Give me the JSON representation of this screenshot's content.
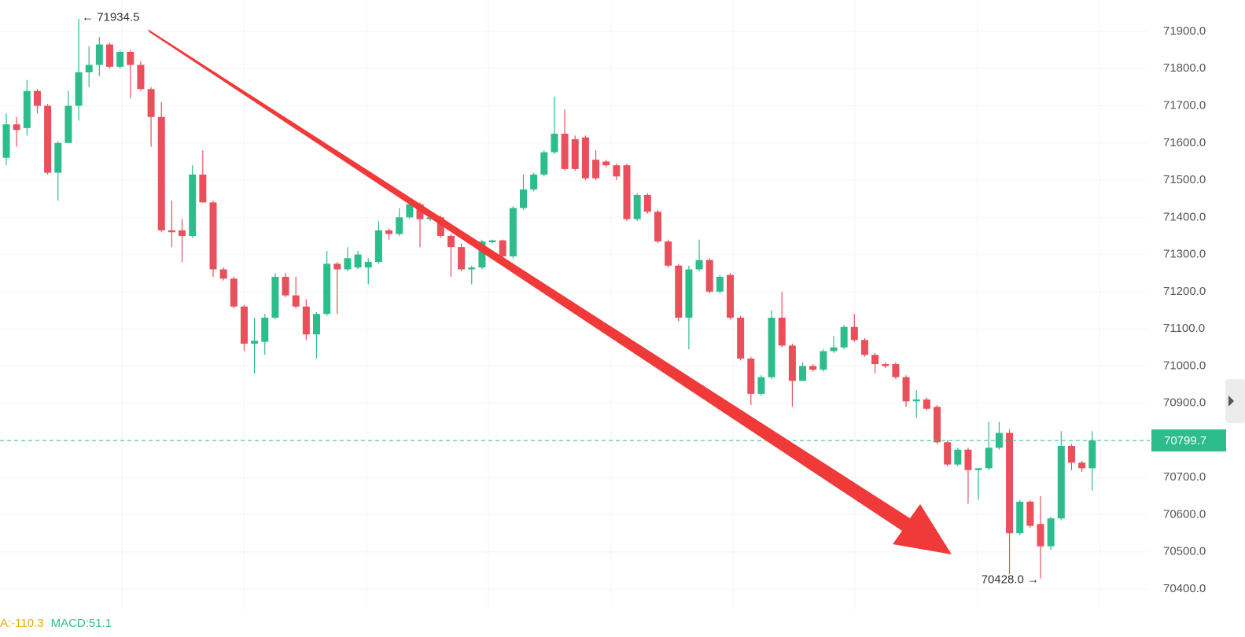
{
  "chart_data": {
    "type": "candlestick",
    "up_color": "#2dbd8c",
    "down_color": "#e9505b",
    "ylim": [
      70400,
      71900
    ],
    "yticks": [
      {
        "value": 70400,
        "label": "70400.0"
      },
      {
        "value": 70500,
        "label": "70500.0"
      },
      {
        "value": 70600,
        "label": "70600.0"
      },
      {
        "value": 70700,
        "label": "70700.0"
      },
      {
        "value": 70800,
        "label": "70800.0"
      },
      {
        "value": 70900,
        "label": "70900.0"
      },
      {
        "value": 71000,
        "label": "71000.0"
      },
      {
        "value": 71100,
        "label": "71100.0"
      },
      {
        "value": 71200,
        "label": "71200.0"
      },
      {
        "value": 71300,
        "label": "71300.0"
      },
      {
        "value": 71400,
        "label": "71400.0"
      },
      {
        "value": 71500,
        "label": "71500.0"
      },
      {
        "value": 71600,
        "label": "71600.0"
      },
      {
        "value": 71700,
        "label": "71700.0"
      },
      {
        "value": 71800,
        "label": "71800.0"
      },
      {
        "value": 71900,
        "label": "71900.0"
      }
    ],
    "open": [
      71560,
      71650,
      71640,
      71740,
      71700,
      71520,
      71600,
      71700,
      71790,
      71810,
      71865,
      71805,
      71845,
      71810,
      71745,
      71670,
      71365,
      71365,
      71350,
      71515,
      71440,
      71260,
      71235,
      71160,
      71060,
      71065,
      71130,
      71240,
      71190,
      71160,
      71085,
      71140,
      71275,
      71260,
      71265,
      71265,
      71280,
      71365,
      71355,
      71400,
      71435,
      71395,
      71400,
      71350,
      71320,
      71260,
      71265,
      71333,
      71338,
      71295,
      71425,
      71475,
      71515,
      71575,
      71625,
      71610,
      71615,
      71555,
      71550,
      71540,
      71540,
      71395,
      71460,
      71415,
      71335,
      71270,
      71130,
      71260,
      71285,
      71200,
      71245,
      71130,
      71020,
      70925,
      70970,
      71130,
      71055,
      70960,
      71000,
      70990,
      71040,
      71050,
      71105,
      71070,
      71030,
      71005,
      71005,
      70970,
      70905,
      70910,
      70890,
      70795,
      70735,
      70775,
      70720,
      70725,
      70780,
      70820,
      70550,
      70635,
      70575,
      70515,
      70590,
      70785,
      70740,
      70725
    ],
    "high": [
      71680,
      71670,
      71770,
      71745,
      71705,
      71605,
      71740,
      71934.5,
      71860,
      71885,
      71870,
      71850,
      71850,
      71820,
      71750,
      71710,
      71445,
      71395,
      71540,
      71580,
      71445,
      71265,
      71240,
      71165,
      71130,
      71140,
      71250,
      71250,
      71240,
      71180,
      71145,
      71310,
      71280,
      71320,
      71310,
      71290,
      71390,
      71370,
      71425,
      71440,
      71440,
      71405,
      71405,
      71355,
      71330,
      71270,
      71340,
      71340,
      71340,
      71430,
      71515,
      71520,
      71580,
      71725,
      71690,
      71620,
      71620,
      71580,
      71555,
      71545,
      71545,
      71465,
      71465,
      71420,
      71340,
      71275,
      71270,
      71340,
      71290,
      71245,
      71250,
      71135,
      71025,
      70975,
      71150,
      71200,
      71060,
      71010,
      71005,
      71045,
      71080,
      71110,
      71140,
      71075,
      71035,
      71010,
      71010,
      70975,
      70935,
      70915,
      70895,
      70800,
      70780,
      70780,
      70725,
      70850,
      70850,
      70830,
      70640,
      70640,
      70650,
      70595,
      70825,
      70790,
      70745,
      70825
    ],
    "low": [
      71540,
      71590,
      71620,
      71680,
      71515,
      71445,
      71600,
      71660,
      71750,
      71780,
      71800,
      71800,
      71720,
      71740,
      71590,
      71360,
      71320,
      71280,
      71345,
      71440,
      71240,
      71230,
      71155,
      71040,
      70980,
      71030,
      71125,
      71185,
      71155,
      71070,
      71020,
      71135,
      71140,
      71255,
      71260,
      71220,
      71275,
      71340,
      71350,
      71395,
      71320,
      71390,
      71345,
      71240,
      71255,
      71220,
      71260,
      71330,
      71290,
      71290,
      71420,
      71470,
      71510,
      71570,
      71525,
      71525,
      71500,
      71500,
      71535,
      71500,
      71390,
      71390,
      71410,
      71330,
      71265,
      71120,
      71045,
      71255,
      71195,
      71195,
      71125,
      71015,
      70895,
      70920,
      70965,
      71050,
      70890,
      70960,
      70985,
      70985,
      71035,
      71045,
      71065,
      71025,
      70980,
      70995,
      70965,
      70890,
      70860,
      70880,
      70790,
      70730,
      70730,
      70630,
      70640,
      70720,
      70775,
      70440,
      70545,
      70565,
      70428,
      70505,
      70585,
      70720,
      70715,
      70665
    ],
    "close": [
      71650,
      71635,
      71740,
      71700,
      71520,
      71600,
      71700,
      71790,
      71810,
      71865,
      71805,
      71845,
      71810,
      71745,
      71670,
      71365,
      71360,
      71350,
      71515,
      71440,
      71260,
      71235,
      71160,
      71060,
      71068,
      71130,
      71240,
      71190,
      71160,
      71085,
      71140,
      71275,
      71260,
      71290,
      71300,
      71280,
      71365,
      71355,
      71400,
      71435,
      71395,
      71400,
      71350,
      71320,
      71260,
      71265,
      71335,
      71338,
      71295,
      71425,
      71475,
      71515,
      71575,
      71625,
      71530,
      71530,
      71505,
      71505,
      71540,
      71510,
      71395,
      71460,
      71415,
      71335,
      71270,
      71130,
      71260,
      71285,
      71200,
      71240,
      71130,
      71020,
      70925,
      70970,
      71130,
      71055,
      70960,
      71000,
      70990,
      71040,
      71050,
      71105,
      71070,
      71030,
      71005,
      71000,
      70970,
      70905,
      70910,
      70885,
      70795,
      70735,
      70775,
      70720,
      70725,
      70780,
      70820,
      70550,
      70635,
      70570,
      70515,
      70590,
      70785,
      70740,
      70725,
      70799.7
    ],
    "last_price": 70799.7,
    "high_marker": {
      "value": 71934.5,
      "label": "← 71934.5"
    },
    "low_marker": {
      "value": 70428.0,
      "label": "70428.0 →"
    },
    "indicators": [
      {
        "label": "A:-110.3",
        "color": "#e6a700"
      },
      {
        "label": "MACD:51.1",
        "color": "#2dbd8c"
      }
    ]
  }
}
